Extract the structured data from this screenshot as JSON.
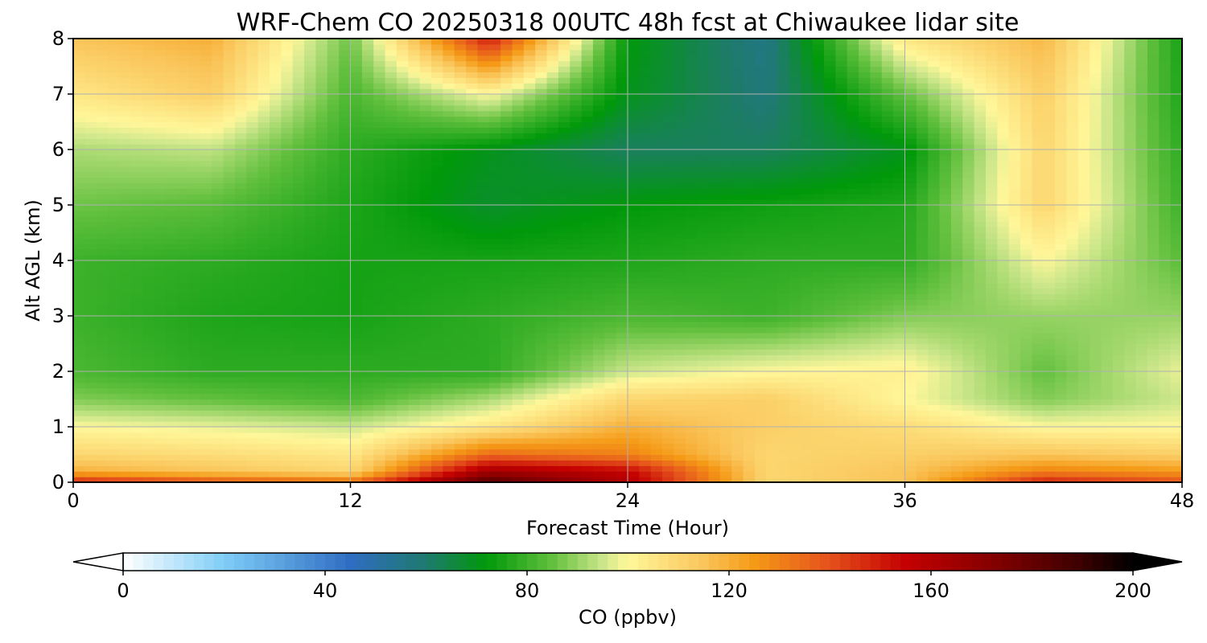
{
  "chart_data": {
    "type": "heatmap",
    "title": "WRF-Chem CO  20250318 00UTC 48h fcst at Chiwaukee lidar site",
    "xlabel": "Forecast Time (Hour)",
    "ylabel": "Alt AGL (km)",
    "xlim": [
      0,
      48
    ],
    "ylim": [
      0,
      8
    ],
    "x_ticks": [
      0,
      12,
      24,
      36,
      48
    ],
    "y_ticks": [
      0,
      1,
      2,
      3,
      4,
      5,
      6,
      7,
      8
    ],
    "grid": true,
    "x": [
      0,
      6,
      12,
      18,
      24,
      30,
      36,
      42,
      48
    ],
    "y": [
      0,
      0.2,
      0.5,
      1,
      1.5,
      2,
      3,
      4,
      5,
      6,
      7,
      8
    ],
    "values": [
      [
        150,
        140,
        135,
        185,
        160,
        110,
        115,
        150,
        140
      ],
      [
        120,
        115,
        110,
        165,
        155,
        110,
        115,
        130,
        125
      ],
      [
        110,
        108,
        105,
        135,
        130,
        110,
        112,
        115,
        112
      ],
      [
        100,
        98,
        95,
        105,
        120,
        112,
        108,
        100,
        100
      ],
      [
        88,
        85,
        82,
        92,
        110,
        112,
        100,
        88,
        95
      ],
      [
        82,
        78,
        78,
        78,
        95,
        100,
        102,
        85,
        98
      ],
      [
        80,
        76,
        75,
        78,
        82,
        80,
        88,
        90,
        90
      ],
      [
        80,
        78,
        75,
        75,
        76,
        78,
        78,
        100,
        84
      ],
      [
        86,
        84,
        76,
        68,
        72,
        74,
        76,
        110,
        80
      ],
      [
        92,
        94,
        78,
        70,
        62,
        62,
        70,
        110,
        78
      ],
      [
        105,
        112,
        82,
        100,
        70,
        58,
        85,
        112,
        76
      ],
      [
        115,
        120,
        86,
        150,
        72,
        56,
        105,
        118,
        75
      ]
    ],
    "colorbar": {
      "label": "CO  (ppbv)",
      "min": 0,
      "max": 200,
      "ticks": [
        0,
        40,
        80,
        120,
        160,
        200
      ],
      "extend": "both",
      "colors": {
        "v0": "#ffffff",
        "v20": "#7fcdf7",
        "v45": "#2f6dc2",
        "v60": "#1f7a6e",
        "v72": "#00990a",
        "v85": "#62c03e",
        "v95": "#cbe68a",
        "v100": "#fff79a",
        "v115": "#fac55a",
        "v125": "#f59a16",
        "v140": "#e5501c",
        "v155": "#c40000",
        "v175": "#7a0000",
        "v190": "#3a0000",
        "v200": "#000000"
      }
    }
  }
}
